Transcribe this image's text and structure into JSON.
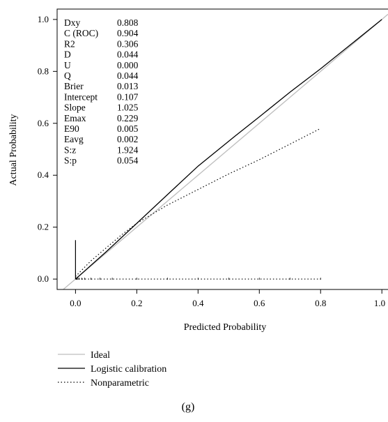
{
  "chart_data": {
    "type": "line",
    "xlabel": "Predicted Probability",
    "ylabel": "Actual Probability",
    "xlim": [
      -0.06,
      1.02
    ],
    "ylim": [
      -0.04,
      1.04
    ],
    "xticks": [
      "0.0",
      "0.2",
      "0.4",
      "0.6",
      "0.8",
      "1.0"
    ],
    "yticks": [
      "0.0",
      "0.2",
      "0.4",
      "0.6",
      "0.8",
      "1.0"
    ],
    "stats": [
      {
        "label": "Dxy",
        "value": "0.808"
      },
      {
        "label": "C (ROC)",
        "value": "0.904"
      },
      {
        "label": "R2",
        "value": "0.306"
      },
      {
        "label": "D",
        "value": "0.044"
      },
      {
        "label": "U",
        "value": "0.000"
      },
      {
        "label": "Q",
        "value": "0.044"
      },
      {
        "label": "Brier",
        "value": "0.013"
      },
      {
        "label": "Intercept",
        "value": "0.107"
      },
      {
        "label": "Slope",
        "value": "1.025"
      },
      {
        "label": "Emax",
        "value": "0.229"
      },
      {
        "label": "E90",
        "value": "0.005"
      },
      {
        "label": "Eavg",
        "value": "0.002"
      },
      {
        "label": "S:z",
        "value": "1.924"
      },
      {
        "label": "S:p",
        "value": "0.054"
      }
    ],
    "series": [
      {
        "name": "Ideal",
        "style": "solid",
        "color": "#bdbdbd",
        "x": [
          -0.06,
          1.02
        ],
        "y": [
          -0.06,
          1.02
        ]
      },
      {
        "name": "Logistic calibration",
        "style": "solid",
        "color": "#000000",
        "x": [
          0.0,
          0.1,
          0.2,
          0.3,
          0.4,
          0.52,
          0.6,
          0.7,
          0.8,
          0.9,
          1.0
        ],
        "y": [
          0.0,
          0.105,
          0.215,
          0.325,
          0.435,
          0.55,
          0.625,
          0.72,
          0.81,
          0.905,
          1.0
        ]
      },
      {
        "name": "Nonparametric",
        "style": "dotted",
        "color": "#000000",
        "x": [
          0.0,
          0.05,
          0.1,
          0.15,
          0.2,
          0.3,
          0.4,
          0.5,
          0.6,
          0.7,
          0.8
        ],
        "y": [
          0.01,
          0.07,
          0.12,
          0.17,
          0.215,
          0.285,
          0.345,
          0.405,
          0.46,
          0.52,
          0.58
        ]
      }
    ],
    "rug_values": [
      0.002,
      0.005,
      0.008,
      0.012,
      0.02,
      0.03,
      0.05,
      0.08,
      0.12,
      0.2,
      0.3,
      0.4,
      0.5,
      0.6,
      0.7,
      0.8
    ],
    "spike": {
      "x": 0.0,
      "y_top": 0.15
    },
    "legend": {
      "position": "bottom-left",
      "items": [
        "Ideal",
        "Logistic calibration",
        "Nonparametric"
      ]
    },
    "grid": false
  },
  "caption": "(g)"
}
